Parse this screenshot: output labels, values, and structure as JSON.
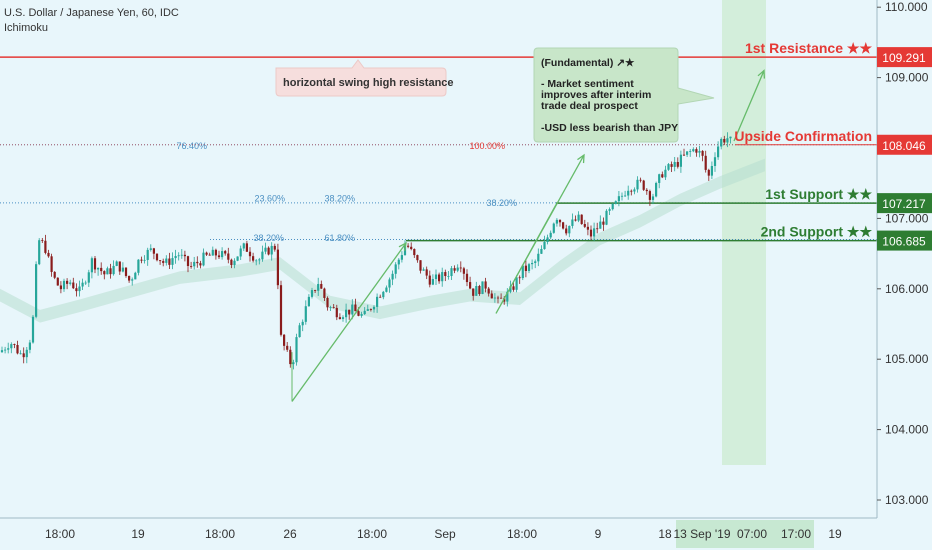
{
  "header": {
    "title": "U.S. Dollar / Japanese Yen, 60, IDC",
    "indicator": "Ichimoku"
  },
  "colors": {
    "background": "#e8f6fb",
    "resistance": "#e53935",
    "support": "#2e7d32",
    "candle_up": "#26a69a",
    "candle_down": "#8a1c1c",
    "fib": "#4a8fc2",
    "arrow": "#66bb6a",
    "cloud": "#b6dfcf",
    "zone": "#d3eedb"
  },
  "chart_data": {
    "type": "candlestick",
    "ylim": [
      102.6,
      110.1
    ],
    "y_ticks": [
      "110.000",
      "109.000",
      "107.000",
      "106.000",
      "105.000",
      "104.000",
      "103.000"
    ],
    "x_ticks": [
      "18:00",
      "19",
      "18:00",
      "26",
      "18:00",
      "Sep",
      "18:00",
      "9",
      "18",
      "13 Sep '19",
      "07:00",
      "17:00",
      "19"
    ],
    "levels": [
      {
        "name": "1st Resistance ★★",
        "value": 109.291,
        "label": "109.291",
        "kind": "resistance"
      },
      {
        "name": "Upside Confirmation",
        "value": 108.046,
        "label": "108.046",
        "kind": "resistance"
      },
      {
        "name": "1st Support ★★",
        "value": 107.217,
        "label": "107.217",
        "kind": "support"
      },
      {
        "name": "2nd Support ★★",
        "value": 106.685,
        "label": "106.685",
        "kind": "support"
      }
    ],
    "fib_labels": [
      "76.40%",
      "100.00%",
      "23.60%",
      "38.20%",
      "38.20%",
      "38.20%",
      "61.80%"
    ],
    "price_path": [
      [
        0,
        105.1
      ],
      [
        10,
        105.25
      ],
      [
        22,
        105.05
      ],
      [
        32,
        105.35
      ],
      [
        38,
        106.7
      ],
      [
        45,
        106.6
      ],
      [
        52,
        106.2
      ],
      [
        60,
        106.0
      ],
      [
        70,
        106.1
      ],
      [
        80,
        105.95
      ],
      [
        92,
        106.4
      ],
      [
        105,
        106.2
      ],
      [
        118,
        106.35
      ],
      [
        130,
        106.1
      ],
      [
        140,
        106.45
      ],
      [
        152,
        106.55
      ],
      [
        165,
        106.35
      ],
      [
        178,
        106.5
      ],
      [
        190,
        106.3
      ],
      [
        205,
        106.45
      ],
      [
        218,
        106.5
      ],
      [
        232,
        106.4
      ],
      [
        245,
        106.6
      ],
      [
        258,
        106.4
      ],
      [
        268,
        106.55
      ],
      [
        276,
        106.6
      ],
      [
        281,
        105.3
      ],
      [
        286,
        105.1
      ],
      [
        292,
        104.9
      ],
      [
        298,
        105.4
      ],
      [
        308,
        105.8
      ],
      [
        318,
        106.1
      ],
      [
        328,
        105.75
      ],
      [
        340,
        105.65
      ],
      [
        352,
        105.7
      ],
      [
        364,
        105.6
      ],
      [
        378,
        105.9
      ],
      [
        392,
        106.2
      ],
      [
        406,
        106.65
      ],
      [
        420,
        106.3
      ],
      [
        432,
        106.1
      ],
      [
        446,
        106.2
      ],
      [
        460,
        106.4
      ],
      [
        472,
        105.95
      ],
      [
        486,
        106.05
      ],
      [
        498,
        105.8
      ],
      [
        510,
        105.95
      ],
      [
        522,
        106.25
      ],
      [
        534,
        106.35
      ],
      [
        544,
        106.6
      ],
      [
        556,
        107.05
      ],
      [
        566,
        106.85
      ],
      [
        578,
        107.0
      ],
      [
        590,
        106.75
      ],
      [
        602,
        106.95
      ],
      [
        616,
        107.2
      ],
      [
        628,
        107.45
      ],
      [
        642,
        107.5
      ],
      [
        652,
        107.3
      ],
      [
        662,
        107.65
      ],
      [
        674,
        107.75
      ],
      [
        686,
        107.9
      ],
      [
        696,
        108.0
      ],
      [
        703,
        107.85
      ],
      [
        708,
        107.55
      ],
      [
        714,
        107.9
      ],
      [
        720,
        108.1
      ],
      [
        727,
        108.15
      ],
      [
        733,
        108.05
      ]
    ]
  },
  "annotations": {
    "swing_note": "horizontal swing high resistance",
    "fundamental_title": "(Fundamental) ↗★",
    "fundamental_line1": "- Market sentiment",
    "fundamental_line2": "improves after interim",
    "fundamental_line3": "trade deal prospect",
    "fundamental_line4": "-USD less bearish than JPY"
  }
}
